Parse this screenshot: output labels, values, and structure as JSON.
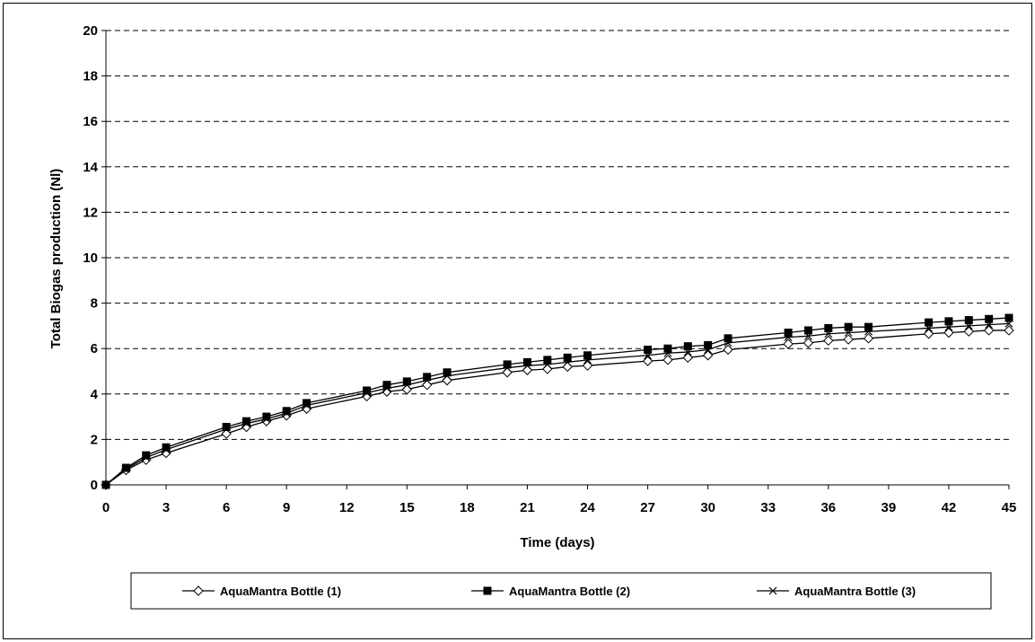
{
  "chart_data": {
    "type": "line",
    "title": "",
    "xlabel": "Time (days)",
    "ylabel": "Total Biogas production (Nl)",
    "xlim": [
      0,
      45
    ],
    "ylim": [
      0,
      20
    ],
    "xticks": [
      0,
      3,
      6,
      9,
      12,
      15,
      18,
      21,
      24,
      27,
      30,
      33,
      36,
      39,
      42,
      45
    ],
    "yticks": [
      0,
      2,
      4,
      6,
      8,
      10,
      12,
      14,
      16,
      18,
      20
    ],
    "grid": "horizontal dashed",
    "legend_position": "bottom",
    "x": [
      0,
      1,
      2,
      3,
      6,
      7,
      8,
      9,
      10,
      13,
      14,
      15,
      16,
      17,
      20,
      21,
      22,
      23,
      24,
      27,
      28,
      29,
      30,
      31,
      34,
      35,
      36,
      37,
      38,
      41,
      42,
      43,
      44,
      45
    ],
    "series": [
      {
        "name": "AquaMantra Bottle (1)",
        "marker": "diamond-open",
        "values": [
          0,
          0.65,
          1.1,
          1.4,
          2.25,
          2.55,
          2.8,
          3.05,
          3.35,
          3.9,
          4.1,
          4.2,
          4.4,
          4.6,
          4.95,
          5.05,
          5.1,
          5.2,
          5.25,
          5.45,
          5.5,
          5.6,
          5.7,
          5.95,
          6.2,
          6.25,
          6.35,
          6.4,
          6.45,
          6.65,
          6.7,
          6.75,
          6.8,
          6.8
        ]
      },
      {
        "name": "AquaMantra Bottle (2)",
        "marker": "square-filled",
        "values": [
          0,
          0.75,
          1.3,
          1.65,
          2.55,
          2.8,
          3.0,
          3.25,
          3.6,
          4.15,
          4.4,
          4.55,
          4.75,
          4.95,
          5.3,
          5.4,
          5.5,
          5.6,
          5.7,
          5.95,
          6.0,
          6.1,
          6.15,
          6.45,
          6.7,
          6.8,
          6.9,
          6.95,
          6.95,
          7.15,
          7.2,
          7.25,
          7.3,
          7.35
        ]
      },
      {
        "name": "AquaMantra Bottle (3)",
        "marker": "x",
        "values": [
          0,
          0.7,
          1.2,
          1.55,
          2.45,
          2.7,
          2.9,
          3.15,
          3.5,
          4.05,
          4.25,
          4.4,
          4.6,
          4.8,
          5.15,
          5.25,
          5.3,
          5.4,
          5.5,
          5.7,
          5.8,
          5.85,
          5.95,
          6.25,
          6.5,
          6.55,
          6.65,
          6.7,
          6.75,
          6.9,
          6.95,
          7.0,
          7.05,
          7.1
        ]
      }
    ],
    "colors": {
      "line": "#000000",
      "grid": "#000000",
      "background": "#ffffff"
    }
  }
}
